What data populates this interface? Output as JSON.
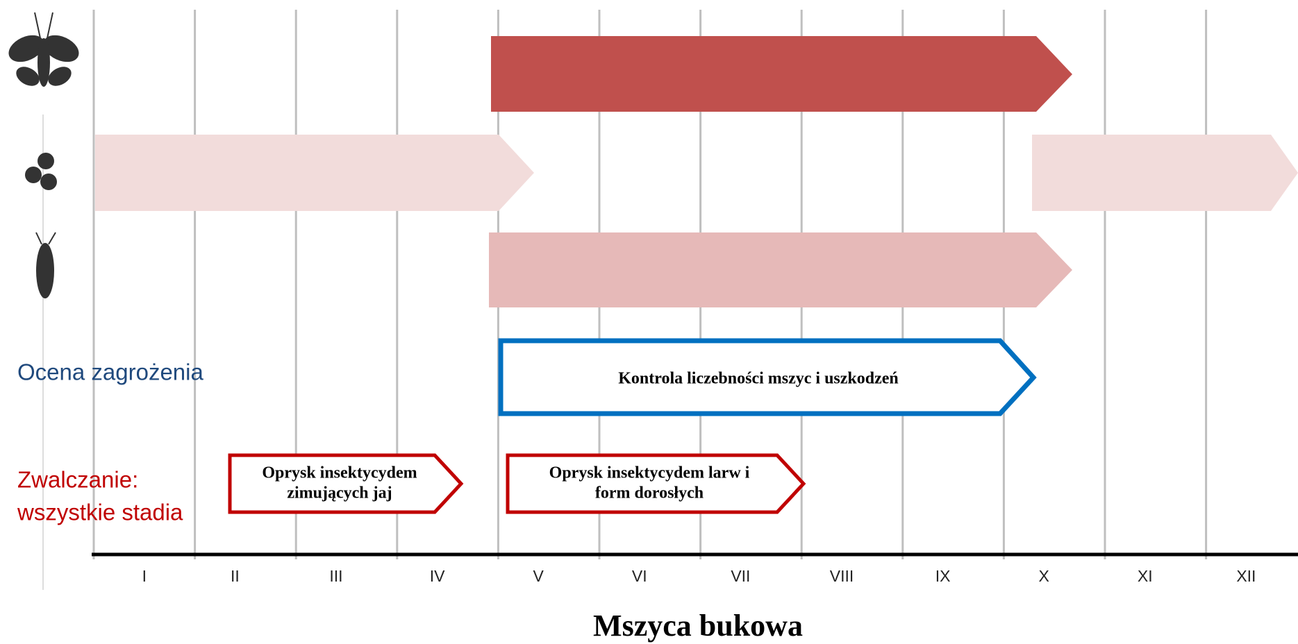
{
  "title": "Mszyca bukowa",
  "months": [
    "I",
    "II",
    "III",
    "IV",
    "V",
    "VI",
    "VII",
    "VIII",
    "IX",
    "X",
    "XI",
    "XII"
  ],
  "labels": {
    "assessment": "Ocena zagrożenia",
    "control": [
      "Zwalczanie:",
      "wszystkie stadia"
    ]
  },
  "boxes": {
    "assessment": "Kontrola liczebności mszyc i uszkodzeń",
    "control": [
      [
        "Oprysk insektycydem",
        "zimujących jaj"
      ],
      [
        "Oprysk insektycydem larw i",
        "form dorosłych"
      ]
    ]
  }
}
